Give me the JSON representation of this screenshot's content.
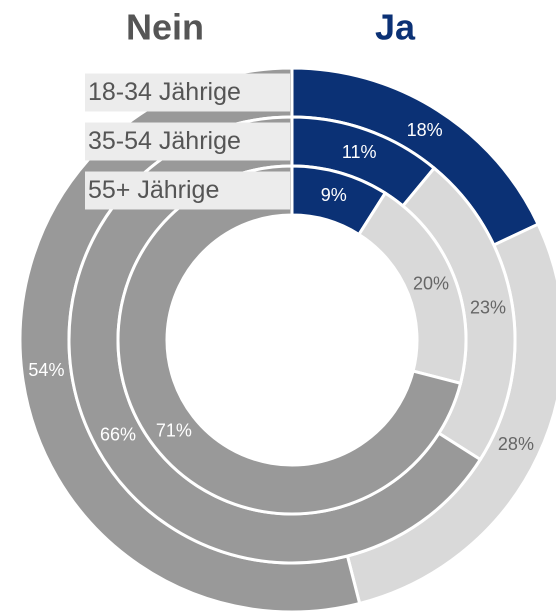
{
  "chart_data": {
    "type": "donut",
    "categories": [
      "Ja",
      null,
      "Nein"
    ],
    "colors": [
      "#0b3175",
      "#d9d9d9",
      "#999999"
    ],
    "series": [
      {
        "name": "18-34 Jährige",
        "values": [
          18,
          28,
          54
        ],
        "value_labels": [
          "18%",
          "28%",
          "54%"
        ]
      },
      {
        "name": "35-54 Jährige",
        "values": [
          11,
          23,
          66
        ],
        "value_labels": [
          "11%",
          "23%",
          "66%"
        ]
      },
      {
        "name": "55+ Jährige",
        "values": [
          9,
          20,
          71
        ],
        "value_labels": [
          "9%",
          "20%",
          "71%"
        ]
      }
    ]
  }
}
